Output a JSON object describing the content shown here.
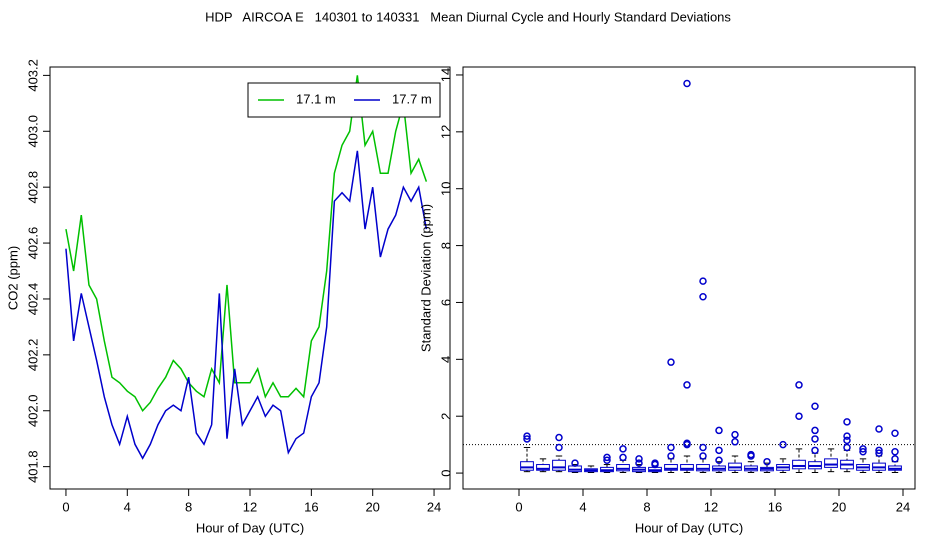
{
  "title": "HDP   AIRCOA E   140301 to 140331   Mean Diurnal Cycle and Hourly Standard Deviations",
  "chart_data": [
    {
      "type": "line",
      "xlabel": "Hour of Day (UTC)",
      "ylabel": "CO2 (ppm)",
      "xlim": [
        -1.04,
        25.04
      ],
      "ylim": [
        401.72,
        403.23
      ],
      "xticks": [
        0,
        4,
        8,
        12,
        16,
        20,
        24
      ],
      "yticks": [
        401.8,
        {
          "value": 402.0,
          "label": "402.0"
        },
        402.2,
        402.4,
        402.6,
        402.8,
        {
          "value": 403.0,
          "label": "403.0"
        },
        403.2
      ],
      "legend": "topright",
      "x": [
        0,
        0.5,
        1,
        1.5,
        2,
        2.5,
        3,
        3.5,
        4,
        4.5,
        5,
        5.5,
        6,
        6.5,
        7,
        7.5,
        8,
        8.5,
        9,
        9.5,
        10,
        10.5,
        11,
        11.5,
        12,
        12.5,
        13,
        13.5,
        14,
        14.5,
        15,
        15.5,
        16,
        16.5,
        17,
        17.5,
        18,
        18.5,
        19,
        19.5,
        20,
        20.5,
        21,
        21.5,
        22,
        22.5,
        23,
        23.5
      ],
      "series": [
        {
          "name": "17.1 m",
          "color": "#00c000",
          "values": [
            402.65,
            402.5,
            402.7,
            402.45,
            402.4,
            402.25,
            402.12,
            402.1,
            402.07,
            402.05,
            402.0,
            402.03,
            402.08,
            402.12,
            402.18,
            402.15,
            402.1,
            402.07,
            402.05,
            402.15,
            402.1,
            402.45,
            402.1,
            402.1,
            402.1,
            402.15,
            402.05,
            402.1,
            402.05,
            402.05,
            402.08,
            402.05,
            402.25,
            402.3,
            402.5,
            402.85,
            402.95,
            403.0,
            403.2,
            402.95,
            403.0,
            402.85,
            402.85,
            403.0,
            403.1,
            402.85,
            402.9,
            402.82
          ]
        },
        {
          "name": "17.7 m",
          "color": "#0000cc",
          "values": [
            402.58,
            402.25,
            402.42,
            402.3,
            402.18,
            402.05,
            401.95,
            401.88,
            401.98,
            401.88,
            401.83,
            401.88,
            401.95,
            402.0,
            402.02,
            402.0,
            402.12,
            401.92,
            401.88,
            401.95,
            402.42,
            401.9,
            402.15,
            401.95,
            402.0,
            402.05,
            401.98,
            402.02,
            402.0,
            401.85,
            401.9,
            401.92,
            402.05,
            402.1,
            402.3,
            402.75,
            402.78,
            402.75,
            402.93,
            402.65,
            402.8,
            402.55,
            402.65,
            402.7,
            402.8,
            402.75,
            402.8,
            402.65
          ]
        }
      ]
    },
    {
      "type": "box",
      "xlabel": "Hour of Day (UTC)",
      "ylabel": "Standard Deviation (ppm)",
      "xlim": [
        -3.5,
        24.75
      ],
      "ylim": [
        -0.56,
        14.28
      ],
      "xticks": [
        0,
        4,
        8,
        12,
        16,
        20,
        24
      ],
      "yticks": [
        0,
        2,
        4,
        6,
        8,
        10,
        12,
        14
      ],
      "reference_line": 1,
      "color": "#0000cc",
      "boxes": [
        {
          "x": 0.5,
          "min": 0.05,
          "q1": 0.1,
          "median": 0.2,
          "q3": 0.4,
          "max": 0.9,
          "outliers": [
            1.2,
            1.3
          ]
        },
        {
          "x": 1.5,
          "min": 0.05,
          "q1": 0.1,
          "median": 0.15,
          "q3": 0.3,
          "max": 0.5,
          "outliers": []
        },
        {
          "x": 2.5,
          "min": 0.05,
          "q1": 0.1,
          "median": 0.2,
          "q3": 0.45,
          "max": 0.6,
          "outliers": [
            0.9,
            1.25
          ]
        },
        {
          "x": 3.5,
          "min": 0.02,
          "q1": 0.05,
          "median": 0.12,
          "q3": 0.25,
          "max": 0.3,
          "outliers": [
            0.35
          ]
        },
        {
          "x": 4.5,
          "min": 0.02,
          "q1": 0.05,
          "median": 0.1,
          "q3": 0.15,
          "max": 0.25,
          "outliers": []
        },
        {
          "x": 5.5,
          "min": 0.02,
          "q1": 0.05,
          "median": 0.1,
          "q3": 0.2,
          "max": 0.3,
          "outliers": [
            0.45,
            0.55
          ]
        },
        {
          "x": 6.5,
          "min": 0.02,
          "q1": 0.08,
          "median": 0.15,
          "q3": 0.3,
          "max": 0.45,
          "outliers": [
            0.55,
            0.85
          ]
        },
        {
          "x": 7.5,
          "min": 0.02,
          "q1": 0.05,
          "median": 0.12,
          "q3": 0.2,
          "max": 0.3,
          "outliers": [
            0.35,
            0.5
          ]
        },
        {
          "x": 8.5,
          "min": 0.02,
          "q1": 0.05,
          "median": 0.1,
          "q3": 0.2,
          "max": 0.25,
          "outliers": [
            0.3,
            0.35
          ]
        },
        {
          "x": 9.5,
          "min": 0.02,
          "q1": 0.1,
          "median": 0.15,
          "q3": 0.3,
          "max": 0.5,
          "outliers": [
            0.6,
            0.9,
            3.9
          ]
        },
        {
          "x": 10.5,
          "min": 0.02,
          "q1": 0.1,
          "median": 0.15,
          "q3": 0.3,
          "max": 0.6,
          "outliers": [
            1.0,
            1.05,
            3.1,
            13.7
          ]
        },
        {
          "x": 11.5,
          "min": 0.02,
          "q1": 0.08,
          "median": 0.15,
          "q3": 0.3,
          "max": 0.5,
          "outliers": [
            0.6,
            0.9,
            6.2,
            6.75
          ]
        },
        {
          "x": 12.5,
          "min": 0.02,
          "q1": 0.08,
          "median": 0.15,
          "q3": 0.25,
          "max": 0.4,
          "outliers": [
            0.45,
            0.8,
            1.5
          ]
        },
        {
          "x": 13.5,
          "min": 0.02,
          "q1": 0.1,
          "median": 0.2,
          "q3": 0.35,
          "max": 0.6,
          "outliers": [
            1.1,
            1.35
          ]
        },
        {
          "x": 14.5,
          "min": 0.02,
          "q1": 0.08,
          "median": 0.15,
          "q3": 0.25,
          "max": 0.4,
          "outliers": [
            0.6,
            0.65
          ]
        },
        {
          "x": 15.5,
          "min": 0.02,
          "q1": 0.08,
          "median": 0.15,
          "q3": 0.2,
          "max": 0.35,
          "outliers": [
            0.4
          ]
        },
        {
          "x": 16.5,
          "min": 0.02,
          "q1": 0.1,
          "median": 0.2,
          "q3": 0.3,
          "max": 0.5,
          "outliers": [
            1.0
          ]
        },
        {
          "x": 17.5,
          "min": 0.02,
          "q1": 0.15,
          "median": 0.25,
          "q3": 0.45,
          "max": 0.85,
          "outliers": [
            2.0,
            3.1
          ]
        },
        {
          "x": 18.5,
          "min": 0.02,
          "q1": 0.15,
          "median": 0.25,
          "q3": 0.4,
          "max": 0.7,
          "outliers": [
            0.8,
            1.2,
            1.5,
            2.35
          ]
        },
        {
          "x": 19.5,
          "min": 0.05,
          "q1": 0.2,
          "median": 0.3,
          "q3": 0.5,
          "max": 0.85,
          "outliers": []
        },
        {
          "x": 20.5,
          "min": 0.05,
          "q1": 0.15,
          "median": 0.3,
          "q3": 0.45,
          "max": 0.8,
          "outliers": [
            0.9,
            1.15,
            1.3,
            1.8
          ]
        },
        {
          "x": 21.5,
          "min": 0.02,
          "q1": 0.1,
          "median": 0.2,
          "q3": 0.3,
          "max": 0.5,
          "outliers": [
            0.75,
            0.85
          ]
        },
        {
          "x": 22.5,
          "min": 0.02,
          "q1": 0.1,
          "median": 0.2,
          "q3": 0.35,
          "max": 0.6,
          "outliers": [
            0.7,
            0.8,
            1.55
          ]
        },
        {
          "x": 23.5,
          "min": 0.02,
          "q1": 0.1,
          "median": 0.15,
          "q3": 0.25,
          "max": 0.4,
          "outliers": [
            0.5,
            0.75,
            1.4
          ]
        }
      ]
    }
  ]
}
